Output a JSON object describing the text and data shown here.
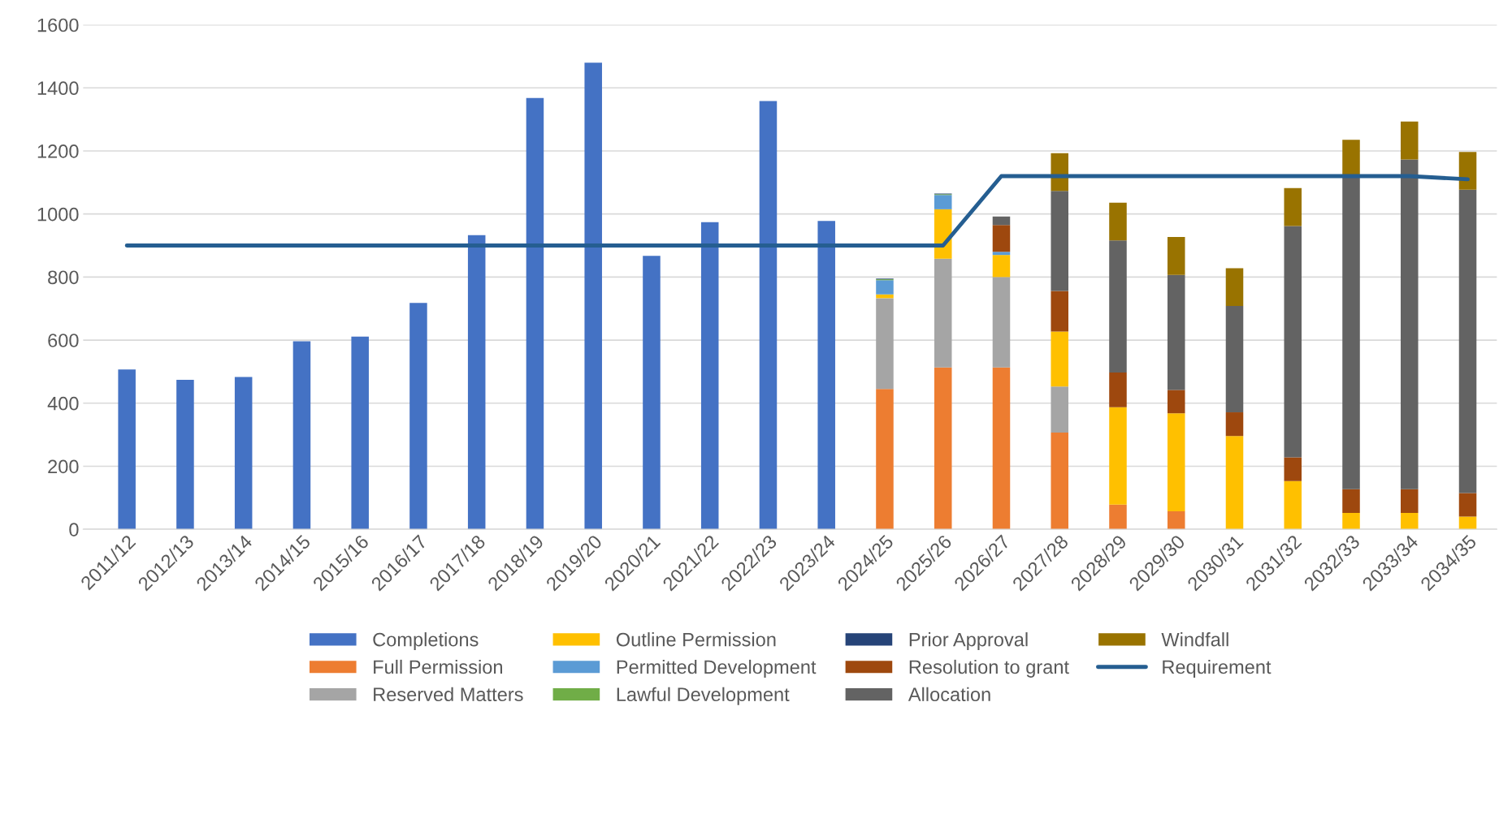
{
  "chart_data": {
    "type": "bar",
    "stacked": true,
    "categories": [
      "2011/12",
      "2012/13",
      "2013/14",
      "2014/15",
      "2015/16",
      "2016/17",
      "2017/18",
      "2018/19",
      "2019/20",
      "2020/21",
      "2021/22",
      "2022/23",
      "2023/24",
      "2024/25",
      "2025/26",
      "2026/27",
      "2027/28",
      "2028/29",
      "2029/30",
      "2030/31",
      "2031/32",
      "2032/33",
      "2033/34",
      "2034/35"
    ],
    "series": [
      {
        "name": "Completions",
        "color": "#4472c4",
        "values": [
          507,
          474,
          483,
          596,
          611,
          718,
          933,
          1368,
          1480,
          867,
          974,
          1358,
          978,
          null,
          null,
          null,
          null,
          null,
          null,
          null,
          null,
          null,
          null,
          null
        ]
      },
      {
        "name": "Full Permission",
        "color": "#ed7d31",
        "values": [
          null,
          null,
          null,
          null,
          null,
          null,
          null,
          null,
          null,
          null,
          null,
          null,
          null,
          445,
          513,
          513,
          307,
          78,
          57,
          null,
          null,
          null,
          null,
          null
        ]
      },
      {
        "name": "Reserved Matters",
        "color": "#a5a5a5",
        "values": [
          null,
          null,
          null,
          null,
          null,
          null,
          null,
          null,
          null,
          null,
          null,
          null,
          null,
          288,
          345,
          287,
          146,
          null,
          null,
          null,
          null,
          null,
          null,
          null
        ]
      },
      {
        "name": "Outline Permission",
        "color": "#ffc000",
        "values": [
          null,
          null,
          null,
          null,
          null,
          null,
          null,
          null,
          null,
          null,
          null,
          null,
          null,
          12,
          157,
          70,
          174,
          309,
          311,
          296,
          153,
          52,
          52,
          40
        ]
      },
      {
        "name": "Permitted Development",
        "color": "#5b9bd5",
        "values": [
          null,
          null,
          null,
          null,
          null,
          null,
          null,
          null,
          null,
          null,
          null,
          null,
          null,
          45,
          45,
          10,
          null,
          null,
          null,
          null,
          null,
          null,
          null,
          null
        ]
      },
      {
        "name": "Lawful Development",
        "color": "#70ad47",
        "values": [
          null,
          null,
          null,
          null,
          null,
          null,
          null,
          null,
          null,
          null,
          null,
          null,
          null,
          3,
          3,
          null,
          null,
          null,
          null,
          null,
          null,
          null,
          null,
          null
        ]
      },
      {
        "name": "Prior Approval",
        "color": "#264478",
        "values": [
          null,
          null,
          null,
          null,
          null,
          null,
          null,
          null,
          null,
          null,
          null,
          null,
          null,
          2,
          2,
          null,
          null,
          null,
          null,
          null,
          null,
          null,
          null,
          null
        ]
      },
      {
        "name": "Resolution to grant",
        "color": "#9e480e",
        "values": [
          null,
          null,
          null,
          null,
          null,
          null,
          null,
          null,
          null,
          null,
          null,
          null,
          null,
          null,
          null,
          85,
          129,
          110,
          74,
          75,
          75,
          75,
          75,
          75
        ]
      },
      {
        "name": "Allocation",
        "color": "#636363",
        "values": [
          null,
          null,
          null,
          null,
          null,
          null,
          null,
          null,
          null,
          null,
          null,
          null,
          null,
          null,
          null,
          27,
          317,
          419,
          365,
          337,
          734,
          988,
          1046,
          962
        ]
      },
      {
        "name": "Windfall",
        "color": "#997300",
        "values": [
          null,
          null,
          null,
          null,
          null,
          null,
          null,
          null,
          null,
          null,
          null,
          null,
          null,
          null,
          null,
          null,
          120,
          120,
          120,
          120,
          120,
          120,
          120,
          120
        ]
      },
      {
        "name": "Requirement",
        "color": "#255e91",
        "type": "line",
        "values": [
          900,
          900,
          900,
          900,
          900,
          900,
          900,
          900,
          900,
          900,
          900,
          900,
          900,
          900,
          900,
          1120,
          1120,
          1120,
          1120,
          1120,
          1120,
          1120,
          1120,
          1110
        ]
      }
    ],
    "ylim": [
      0,
      1600
    ],
    "yticks": [
      0,
      200,
      400,
      600,
      800,
      1000,
      1200,
      1400,
      1600
    ],
    "grid": "y",
    "legend": "bottom"
  }
}
